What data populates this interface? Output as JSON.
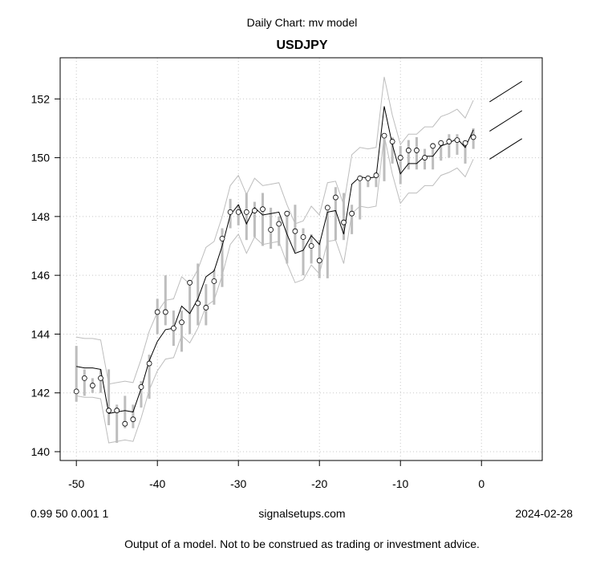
{
  "header": {
    "subtitle": "Daily Chart: mv model",
    "title": "USDJPY"
  },
  "footer": {
    "params": "0.99 50 0.001 1",
    "site": "signalsetups.com",
    "date": "2024-02-28",
    "disclaimer": "Output of a model.  Not to be construed as trading or investment advice."
  },
  "colors": {
    "range_bar": "#bdbdbd",
    "band": "#bdbdbd",
    "model_line": "#000000",
    "grid": "#c8c8c8"
  },
  "chart_data": {
    "type": "line",
    "title": "USDJPY",
    "subtitle": "Daily Chart: mv model",
    "xlim": [
      -52,
      7.5
    ],
    "ylim": [
      139.7,
      153.4
    ],
    "xticks": [
      -50,
      -40,
      -30,
      -20,
      -10,
      0
    ],
    "yticks": [
      140,
      142,
      144,
      146,
      148,
      150,
      152
    ],
    "grid": true,
    "x": [
      -50,
      -49,
      -48,
      -47,
      -46,
      -45,
      -44,
      -43,
      -42,
      -41,
      -40,
      -39,
      -38,
      -37,
      -36,
      -35,
      -34,
      -33,
      -32,
      -31,
      -30,
      -29,
      -28,
      -27,
      -26,
      -25,
      -24,
      -23,
      -22,
      -21,
      -20,
      -19,
      -18,
      -17,
      -16,
      -15,
      -14,
      -13,
      -12,
      -11,
      -10,
      -9,
      -8,
      -7,
      -6,
      -5,
      -4,
      -3,
      -2,
      -1
    ],
    "close": [
      142.05,
      142.5,
      142.25,
      142.5,
      141.4,
      141.4,
      140.95,
      141.1,
      142.2,
      143.0,
      144.75,
      144.75,
      144.2,
      144.4,
      145.75,
      145.05,
      144.9,
      145.8,
      147.25,
      148.15,
      148.15,
      148.15,
      148.2,
      148.25,
      147.55,
      147.75,
      148.1,
      147.5,
      147.3,
      147.0,
      146.5,
      148.3,
      148.65,
      147.8,
      148.1,
      149.3,
      149.3,
      149.4,
      150.75,
      150.55,
      150.0,
      150.25,
      150.25,
      150.0,
      150.4,
      150.5,
      150.55,
      150.6,
      150.5,
      150.7
    ],
    "range_low": [
      141.7,
      141.9,
      142.0,
      142.0,
      140.9,
      140.3,
      140.8,
      140.8,
      141.5,
      141.8,
      144.0,
      144.3,
      143.6,
      143.4,
      144.0,
      144.3,
      144.3,
      145.0,
      145.6,
      147.6,
      147.7,
      147.2,
      147.3,
      147.0,
      146.9,
      147.0,
      146.4,
      146.8,
      146.0,
      146.4,
      145.9,
      145.9,
      147.2,
      147.2,
      147.4,
      147.9,
      149.0,
      149.0,
      149.2,
      149.8,
      149.1,
      149.6,
      149.6,
      149.6,
      149.6,
      149.9,
      150.0,
      150.1,
      149.8,
      150.3
    ],
    "range_high": [
      143.6,
      142.8,
      142.5,
      142.8,
      142.8,
      141.6,
      141.9,
      141.6,
      142.4,
      143.3,
      145.2,
      146.0,
      144.8,
      144.8,
      145.8,
      146.4,
      145.7,
      146.2,
      147.6,
      148.6,
      148.4,
      148.8,
      148.5,
      148.8,
      148.3,
      148.0,
      148.1,
      148.4,
      147.6,
      147.4,
      147.2,
      148.4,
      149.0,
      148.8,
      148.4,
      149.4,
      149.4,
      149.5,
      150.8,
      150.7,
      150.4,
      150.6,
      150.7,
      150.3,
      150.5,
      150.6,
      150.8,
      150.8,
      150.6,
      151.0
    ],
    "model": [
      142.9,
      142.85,
      142.85,
      142.8,
      141.3,
      141.35,
      141.4,
      141.35,
      142.15,
      143.1,
      143.75,
      144.15,
      144.2,
      144.95,
      144.7,
      145.2,
      145.95,
      146.15,
      147.0,
      148.05,
      148.4,
      147.75,
      148.3,
      148.05,
      148.1,
      148.15,
      147.4,
      146.75,
      146.85,
      147.35,
      147.05,
      148.15,
      148.2,
      147.4,
      149.1,
      149.35,
      149.3,
      149.35,
      151.75,
      150.45,
      149.45,
      149.8,
      149.8,
      150.05,
      150.05,
      150.4,
      150.5,
      150.65,
      150.35,
      150.95
    ],
    "band_upper": [
      143.9,
      143.85,
      143.85,
      143.8,
      142.3,
      142.35,
      142.4,
      142.35,
      143.15,
      144.1,
      144.75,
      145.15,
      145.2,
      145.95,
      145.7,
      146.2,
      146.95,
      147.15,
      148.0,
      149.05,
      149.4,
      148.75,
      149.3,
      149.05,
      149.1,
      149.15,
      148.4,
      147.75,
      147.85,
      148.35,
      148.05,
      149.15,
      149.2,
      148.4,
      150.1,
      150.35,
      150.3,
      150.35,
      152.75,
      151.45,
      150.45,
      150.8,
      150.8,
      151.05,
      151.05,
      151.4,
      151.5,
      151.65,
      151.35,
      151.95
    ],
    "band_lower": [
      141.9,
      141.85,
      141.85,
      141.8,
      140.3,
      140.35,
      140.4,
      140.35,
      141.15,
      142.1,
      142.75,
      143.15,
      143.2,
      143.95,
      143.7,
      144.2,
      144.95,
      145.15,
      146.0,
      147.05,
      147.4,
      146.75,
      147.3,
      147.05,
      147.1,
      147.15,
      146.4,
      145.75,
      145.85,
      146.35,
      146.05,
      147.15,
      147.2,
      146.4,
      148.1,
      148.35,
      148.3,
      148.35,
      150.75,
      149.45,
      148.45,
      148.8,
      148.8,
      149.05,
      149.05,
      149.4,
      149.5,
      149.65,
      149.35,
      149.95
    ],
    "forecast": {
      "x": [
        1,
        5
      ],
      "mid": [
        150.9,
        151.6
      ],
      "upper": [
        151.9,
        152.6
      ],
      "lower": [
        149.95,
        150.65
      ]
    }
  }
}
